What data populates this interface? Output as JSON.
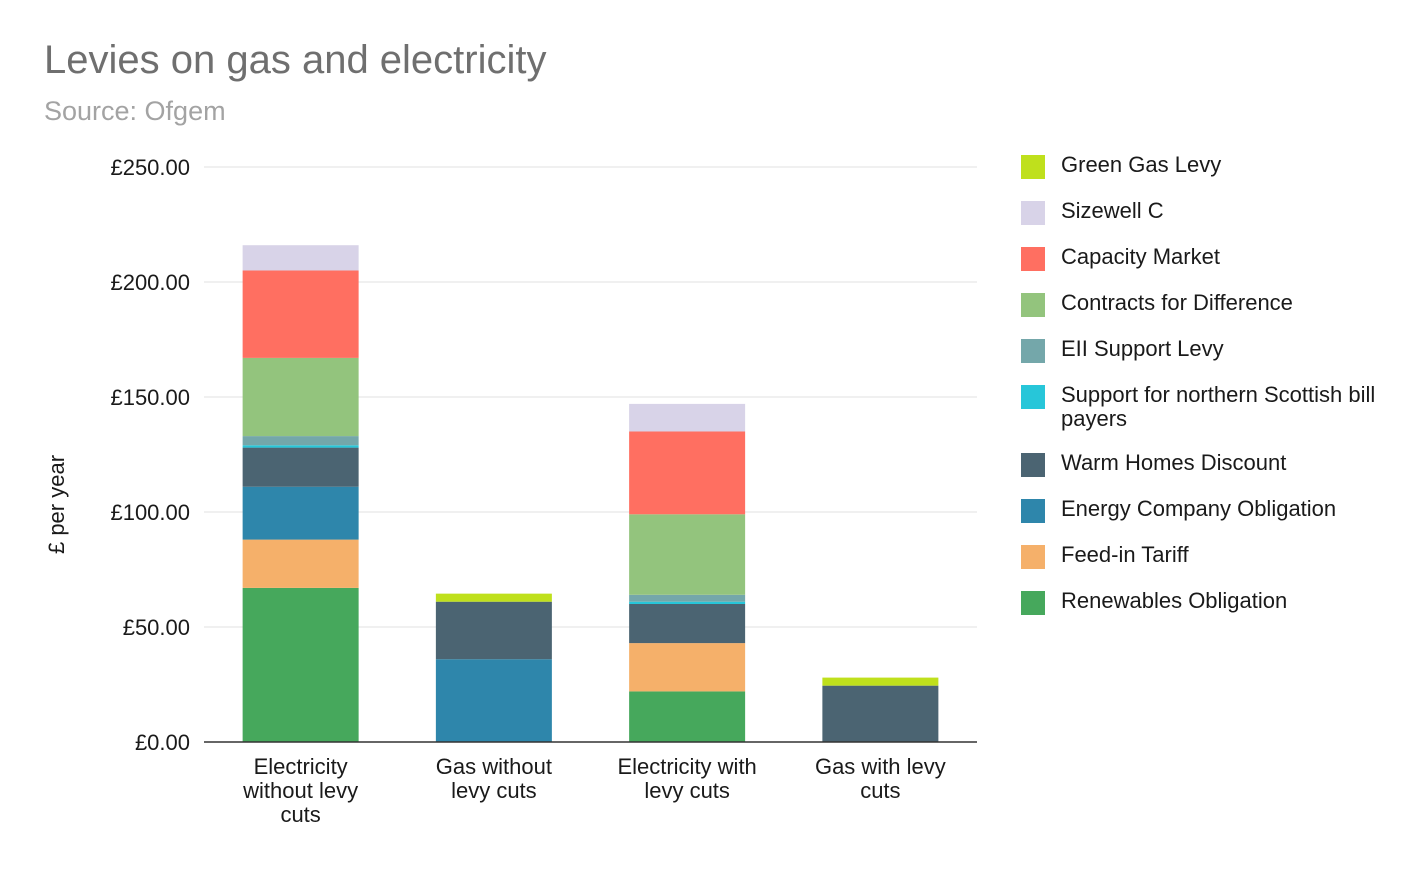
{
  "header": {
    "title": "Levies on gas and electricity",
    "subtitle": "Source: Ofgem"
  },
  "chart_data": {
    "type": "bar",
    "stacked": true,
    "title": "Levies on gas and electricity",
    "subtitle": "Source: Ofgem",
    "xlabel": "",
    "ylabel": "£ per year",
    "ylim": [
      0,
      250
    ],
    "yticks": [
      0,
      50,
      100,
      150,
      200,
      250
    ],
    "ytick_labels": [
      "£0.00",
      "£50.00",
      "£100.00",
      "£150.00",
      "£200.00",
      "£250.00"
    ],
    "grid": true,
    "legend_position": "right",
    "categories": [
      [
        "Electricity",
        "without levy",
        "cuts"
      ],
      [
        "Gas without",
        "levy cuts"
      ],
      [
        "Electricity with",
        "levy cuts"
      ],
      [
        "Gas with levy",
        "cuts"
      ]
    ],
    "series": [
      {
        "name": "Renewables Obligation",
        "color": "#46a85c",
        "values": [
          67,
          0,
          22,
          0
        ]
      },
      {
        "name": "Feed-in Tariff",
        "color": "#f5b06a",
        "values": [
          21,
          0,
          21,
          0
        ]
      },
      {
        "name": "Energy Company Obligation",
        "color": "#2e86ab",
        "values": [
          23,
          36,
          0,
          0
        ]
      },
      {
        "name": "Warm Homes Discount",
        "color": "#4b6472",
        "values": [
          17,
          25,
          17,
          24.5
        ]
      },
      {
        "name": "Support for northern Scottish bill payers",
        "color": "#27c6d9",
        "values": [
          1,
          0,
          1,
          0
        ]
      },
      {
        "name": "EII Support Levy",
        "color": "#74a7aa",
        "values": [
          4,
          0,
          3,
          0
        ]
      },
      {
        "name": "Contracts for Difference",
        "color": "#93c47d",
        "values": [
          34,
          0,
          35,
          0
        ]
      },
      {
        "name": "Capacity Market",
        "color": "#ff6f61",
        "values": [
          38,
          0,
          36,
          0
        ]
      },
      {
        "name": "Sizewell C",
        "color": "#d8d3e8",
        "values": [
          11,
          0,
          12,
          0
        ]
      },
      {
        "name": "Green Gas Levy",
        "color": "#bfe01c",
        "values": [
          0,
          3.5,
          0,
          3.5
        ]
      }
    ]
  }
}
